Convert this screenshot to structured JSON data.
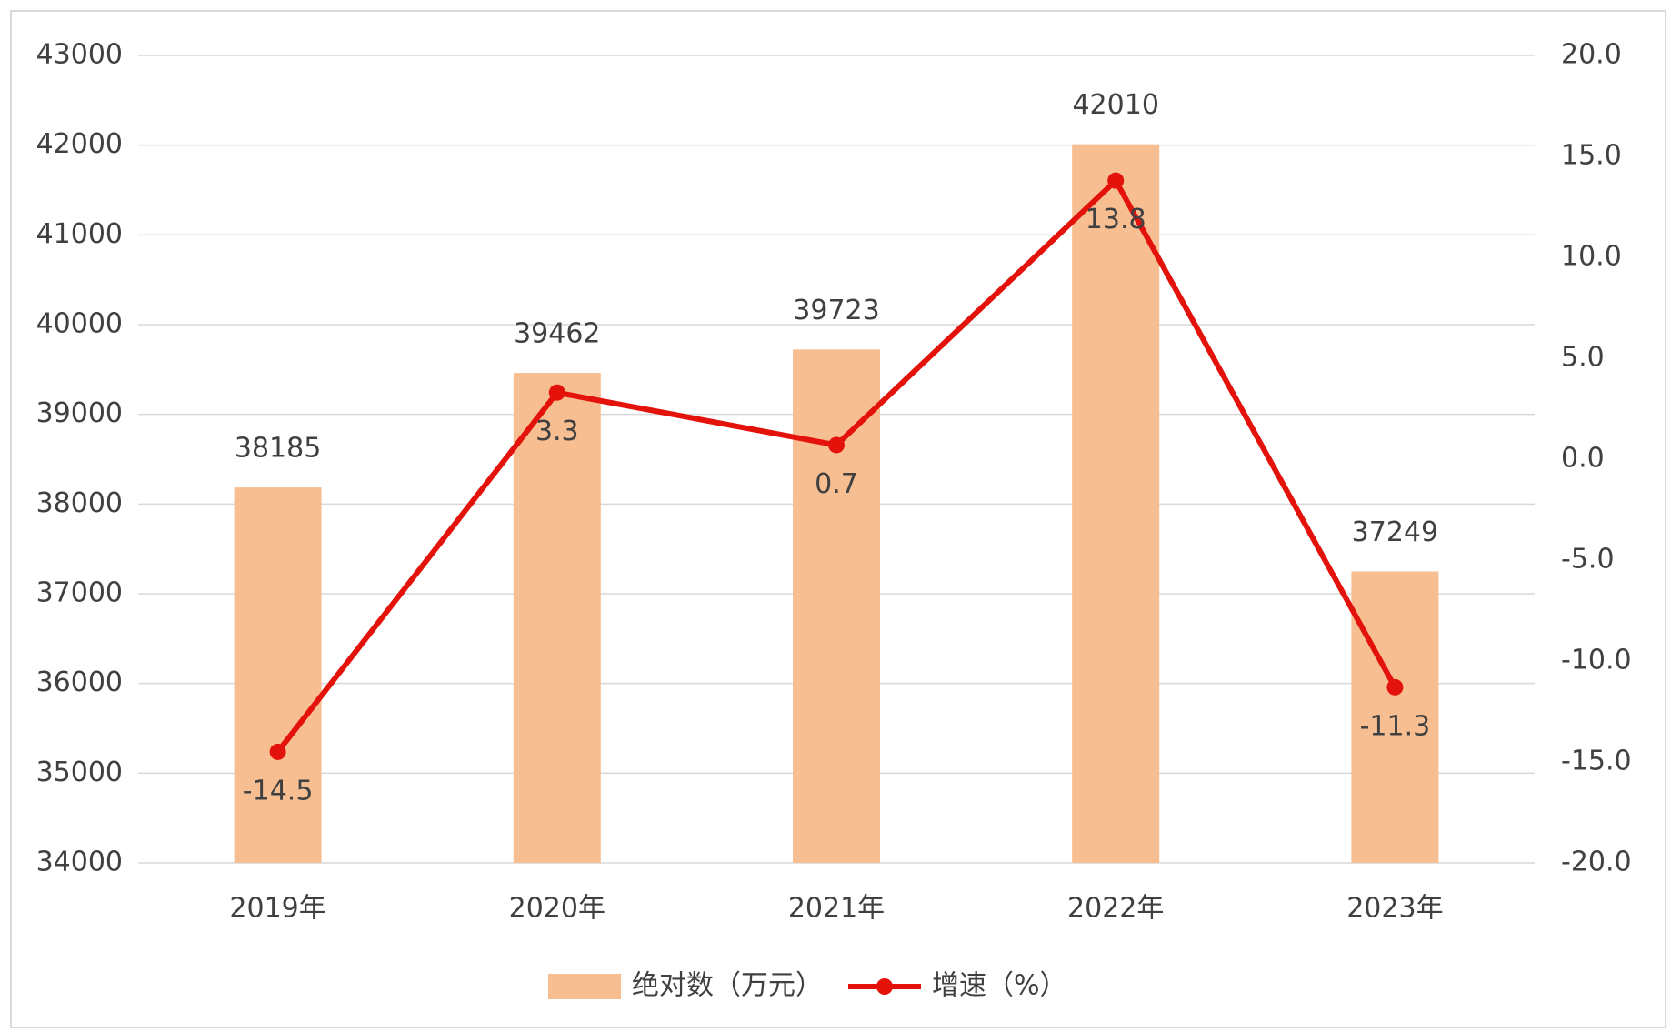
{
  "chart_data": {
    "type": "bar",
    "categories": [
      "2019年",
      "2020年",
      "2021年",
      "2022年",
      "2023年"
    ],
    "series": [
      {
        "name": "绝对数（万元）",
        "type": "bar",
        "color": "#f7be91",
        "values": [
          38185,
          39462,
          39723,
          42010,
          37249
        ]
      },
      {
        "name": "增速（%）",
        "type": "line",
        "axis": "y2",
        "color": "#e3120b",
        "values": [
          -14.5,
          3.3,
          0.7,
          13.8,
          -11.3
        ]
      }
    ],
    "ylim": [
      34000,
      43000
    ],
    "yticks": [
      34000,
      35000,
      36000,
      37000,
      38000,
      39000,
      40000,
      41000,
      42000,
      43000
    ],
    "y2lim": [
      -20,
      20
    ],
    "y2ticks": [
      {
        "value": -20,
        "label": "-20.0"
      },
      {
        "value": -15,
        "label": "-15.0"
      },
      {
        "value": -10,
        "label": "-10.0"
      },
      {
        "value": -5,
        "label": "-5.0"
      },
      {
        "value": 0,
        "label": "0.0"
      },
      {
        "value": 5,
        "label": "5.0"
      },
      {
        "value": 10,
        "label": "10.0"
      },
      {
        "value": 15,
        "label": "15.0"
      },
      {
        "value": 20,
        "label": "20.0"
      }
    ],
    "grid": true,
    "legend": "bottom"
  }
}
